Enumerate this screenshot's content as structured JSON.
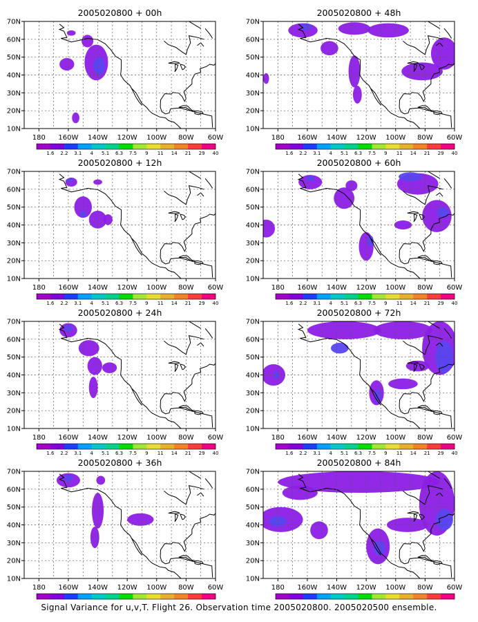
{
  "caption": "Signal Variance for u,v,T. Flight 26. Observation time 2005020800. 2005020500 ensemble.",
  "colorbar": {
    "labels": [
      "1.6",
      "2.2",
      "3.1",
      "4",
      "5.1",
      "6.3",
      "7.5",
      "9",
      "11",
      "14",
      "21",
      "29",
      "40"
    ],
    "colors": [
      "#a000c8",
      "#8200dc",
      "#1e3cff",
      "#00a0ff",
      "#00c8c8",
      "#00d28c",
      "#00dc00",
      "#a0e632",
      "#e6dc32",
      "#e6af2d",
      "#f08228",
      "#fa3c3c",
      "#f00082"
    ]
  },
  "chart_data": [
    {
      "type": "heatmap",
      "title": "2005020800 + 00h",
      "xticks": [
        "180",
        "160W",
        "140W",
        "120W",
        "100W",
        "80W",
        "60W"
      ],
      "yticks": [
        "10N",
        "20N",
        "30N",
        "40N",
        "50N",
        "60N",
        "70N"
      ],
      "lon_range": [
        -190,
        -60
      ],
      "lat_range": [
        10,
        70
      ],
      "grid": true,
      "blobs": [
        {
          "lon": -158,
          "lat": 63.5,
          "rx": 3,
          "ry": 1.5,
          "level": 1
        },
        {
          "lon": -147,
          "lat": 59,
          "rx": 4,
          "ry": 3.5,
          "level": 1
        },
        {
          "lon": -141,
          "lat": 47,
          "rx": 8,
          "ry": 10,
          "level": 1
        },
        {
          "lon": -139,
          "lat": 45,
          "rx": 4,
          "ry": 5,
          "level": 2
        },
        {
          "lon": -161,
          "lat": 46,
          "rx": 5,
          "ry": 3.5,
          "level": 1
        },
        {
          "lon": -155,
          "lat": 16,
          "rx": 2.5,
          "ry": 3,
          "level": 1
        }
      ]
    },
    {
      "type": "heatmap",
      "title": "2005020800 + 48h",
      "xticks": [
        "180",
        "160W",
        "140W",
        "120W",
        "100W",
        "80W",
        "60W"
      ],
      "yticks": [
        "10N",
        "20N",
        "30N",
        "40N",
        "50N",
        "60N",
        "70N"
      ],
      "lon_range": [
        -190,
        -60
      ],
      "lat_range": [
        10,
        70
      ],
      "grid": true,
      "blobs": [
        {
          "lon": -163,
          "lat": 65,
          "rx": 10,
          "ry": 4,
          "level": 1
        },
        {
          "lon": -161,
          "lat": 67,
          "rx": 4,
          "ry": 2,
          "level": 2
        },
        {
          "lon": -128,
          "lat": 66,
          "rx": 11,
          "ry": 3.5,
          "level": 1
        },
        {
          "lon": -105,
          "lat": 65,
          "rx": 14,
          "ry": 4,
          "level": 1
        },
        {
          "lon": -145,
          "lat": 55,
          "rx": 6,
          "ry": 4,
          "level": 1
        },
        {
          "lon": -128,
          "lat": 42,
          "rx": 4,
          "ry": 9,
          "level": 1
        },
        {
          "lon": -126,
          "lat": 29,
          "rx": 3,
          "ry": 5,
          "level": 1
        },
        {
          "lon": -82,
          "lat": 42,
          "rx": 14,
          "ry": 5,
          "level": 1
        },
        {
          "lon": -67,
          "lat": 52,
          "rx": 9,
          "ry": 9,
          "level": 1
        },
        {
          "lon": -188,
          "lat": 38,
          "rx": 2,
          "ry": 3,
          "level": 1
        }
      ]
    },
    {
      "type": "heatmap",
      "title": "2005020800 + 12h",
      "xticks": [
        "180",
        "160W",
        "140W",
        "120W",
        "100W",
        "80W",
        "60W"
      ],
      "yticks": [
        "10N",
        "20N",
        "30N",
        "40N",
        "50N",
        "60N",
        "70N"
      ],
      "lon_range": [
        -190,
        -60
      ],
      "lat_range": [
        10,
        70
      ],
      "grid": true,
      "blobs": [
        {
          "lon": -158,
          "lat": 64,
          "rx": 4,
          "ry": 2.5,
          "level": 1
        },
        {
          "lon": -159,
          "lat": 65,
          "rx": 2,
          "ry": 1.2,
          "level": 2
        },
        {
          "lon": -140,
          "lat": 64,
          "rx": 3,
          "ry": 1.5,
          "level": 1
        },
        {
          "lon": -150,
          "lat": 50,
          "rx": 6,
          "ry": 6,
          "level": 1
        },
        {
          "lon": -150,
          "lat": 46,
          "rx": 2,
          "ry": 2,
          "level": 2
        },
        {
          "lon": -140,
          "lat": 43,
          "rx": 6,
          "ry": 5,
          "level": 1
        },
        {
          "lon": -133,
          "lat": 43,
          "rx": 3,
          "ry": 3,
          "level": 1
        }
      ]
    },
    {
      "type": "heatmap",
      "title": "2005020800 + 60h",
      "xticks": [
        "180",
        "160W",
        "140W",
        "120W",
        "100W",
        "80W",
        "60W"
      ],
      "yticks": [
        "10N",
        "20N",
        "30N",
        "40N",
        "50N",
        "60N",
        "70N"
      ],
      "lon_range": [
        -190,
        -60
      ],
      "lat_range": [
        10,
        70
      ],
      "grid": true,
      "blobs": [
        {
          "lon": -158,
          "lat": 64,
          "rx": 8,
          "ry": 4,
          "level": 1
        },
        {
          "lon": -158,
          "lat": 66,
          "rx": 3,
          "ry": 1.5,
          "level": 2
        },
        {
          "lon": -135,
          "lat": 55,
          "rx": 7,
          "ry": 6,
          "level": 1
        },
        {
          "lon": -130,
          "lat": 62,
          "rx": 4,
          "ry": 3,
          "level": 1
        },
        {
          "lon": -188,
          "lat": 38,
          "rx": 6,
          "ry": 5,
          "level": 1
        },
        {
          "lon": -120,
          "lat": 28,
          "rx": 5,
          "ry": 8,
          "level": 1
        },
        {
          "lon": -117,
          "lat": 31,
          "rx": 2,
          "ry": 3,
          "level": 2
        },
        {
          "lon": -85,
          "lat": 63,
          "rx": 14,
          "ry": 6,
          "level": 1
        },
        {
          "lon": -90,
          "lat": 67,
          "rx": 8,
          "ry": 2.5,
          "level": 2
        },
        {
          "lon": -72,
          "lat": 45,
          "rx": 10,
          "ry": 9,
          "level": 1
        },
        {
          "lon": -68,
          "lat": 47,
          "rx": 4,
          "ry": 3,
          "level": 2
        },
        {
          "lon": -95,
          "lat": 40,
          "rx": 6,
          "ry": 2.5,
          "level": 1
        }
      ]
    },
    {
      "type": "heatmap",
      "title": "2005020800 + 24h",
      "xticks": [
        "180",
        "160W",
        "140W",
        "120W",
        "100W",
        "80W",
        "60W"
      ],
      "yticks": [
        "10N",
        "20N",
        "30N",
        "40N",
        "50N",
        "60N",
        "70N"
      ],
      "lon_range": [
        -190,
        -60
      ],
      "lat_range": [
        10,
        70
      ],
      "grid": true,
      "blobs": [
        {
          "lon": -160,
          "lat": 65,
          "rx": 6,
          "ry": 4,
          "level": 1
        },
        {
          "lon": -160,
          "lat": 66,
          "rx": 3,
          "ry": 2,
          "level": 2
        },
        {
          "lon": -146,
          "lat": 55,
          "rx": 7,
          "ry": 4.5,
          "level": 1
        },
        {
          "lon": -142,
          "lat": 45,
          "rx": 5,
          "ry": 5,
          "level": 1
        },
        {
          "lon": -143,
          "lat": 33,
          "rx": 3,
          "ry": 6,
          "level": 1
        },
        {
          "lon": -132,
          "lat": 44,
          "rx": 5,
          "ry": 3,
          "level": 1
        }
      ]
    },
    {
      "type": "heatmap",
      "title": "2005020800 + 72h",
      "xticks": [
        "180",
        "160W",
        "140W",
        "120W",
        "100W",
        "80W",
        "60W"
      ],
      "yticks": [
        "10N",
        "20N",
        "30N",
        "40N",
        "50N",
        "60N",
        "70N"
      ],
      "lon_range": [
        -190,
        -60
      ],
      "lat_range": [
        10,
        70
      ],
      "grid": true,
      "blobs": [
        {
          "lon": -135,
          "lat": 65,
          "rx": 25,
          "ry": 5,
          "level": 1
        },
        {
          "lon": -95,
          "lat": 65,
          "rx": 20,
          "ry": 5,
          "level": 1
        },
        {
          "lon": -70,
          "lat": 55,
          "rx": 12,
          "ry": 15,
          "level": 1
        },
        {
          "lon": -67,
          "lat": 50,
          "rx": 6,
          "ry": 9,
          "level": 2
        },
        {
          "lon": -183,
          "lat": 40,
          "rx": 8,
          "ry": 6,
          "level": 1
        },
        {
          "lon": -181,
          "lat": 40,
          "rx": 2,
          "ry": 2,
          "level": 2
        },
        {
          "lon": -138,
          "lat": 55,
          "rx": 6,
          "ry": 3,
          "level": 2
        },
        {
          "lon": -113,
          "lat": 30,
          "rx": 5,
          "ry": 7,
          "level": 1
        },
        {
          "lon": -112,
          "lat": 28,
          "rx": 2,
          "ry": 4,
          "level": 2
        },
        {
          "lon": -95,
          "lat": 35,
          "rx": 10,
          "ry": 3,
          "level": 1
        },
        {
          "lon": -85,
          "lat": 45,
          "rx": 8,
          "ry": 3,
          "level": 1
        }
      ]
    },
    {
      "type": "heatmap",
      "title": "2005020800 + 36h",
      "xticks": [
        "180",
        "160W",
        "140W",
        "120W",
        "100W",
        "80W",
        "60W"
      ],
      "yticks": [
        "10N",
        "20N",
        "30N",
        "40N",
        "50N",
        "60N",
        "70N"
      ],
      "lon_range": [
        -190,
        -60
      ],
      "lat_range": [
        10,
        70
      ],
      "grid": true,
      "blobs": [
        {
          "lon": -160,
          "lat": 65,
          "rx": 8,
          "ry": 4,
          "level": 1
        },
        {
          "lon": -160,
          "lat": 66,
          "rx": 3,
          "ry": 2,
          "level": 2
        },
        {
          "lon": -138,
          "lat": 65,
          "rx": 3,
          "ry": 2.5,
          "level": 1
        },
        {
          "lon": -140,
          "lat": 48,
          "rx": 4,
          "ry": 10,
          "level": 1
        },
        {
          "lon": -142,
          "lat": 33,
          "rx": 3,
          "ry": 6,
          "level": 1
        },
        {
          "lon": -111,
          "lat": 43,
          "rx": 9,
          "ry": 3.5,
          "level": 1
        }
      ]
    },
    {
      "type": "heatmap",
      "title": "2005020800 + 84h",
      "xticks": [
        "180",
        "160W",
        "140W",
        "120W",
        "100W",
        "80W",
        "60W"
      ],
      "yticks": [
        "10N",
        "20N",
        "30N",
        "40N",
        "50N",
        "60N",
        "70N"
      ],
      "lon_range": [
        -190,
        -60
      ],
      "lat_range": [
        10,
        70
      ],
      "grid": true,
      "blobs": [
        {
          "lon": -125,
          "lat": 64,
          "rx": 55,
          "ry": 6,
          "level": 1
        },
        {
          "lon": -165,
          "lat": 58,
          "rx": 12,
          "ry": 4,
          "level": 1
        },
        {
          "lon": -72,
          "lat": 52,
          "rx": 12,
          "ry": 18,
          "level": 1
        },
        {
          "lon": -67,
          "lat": 43,
          "rx": 6,
          "ry": 6,
          "level": 2
        },
        {
          "lon": -178,
          "lat": 43,
          "rx": 15,
          "ry": 7,
          "level": 1
        },
        {
          "lon": -180,
          "lat": 42,
          "rx": 6,
          "ry": 3,
          "level": 2
        },
        {
          "lon": -152,
          "lat": 37,
          "rx": 6,
          "ry": 5,
          "level": 1
        },
        {
          "lon": -112,
          "lat": 28,
          "rx": 8,
          "ry": 10,
          "level": 1
        },
        {
          "lon": -111,
          "lat": 27,
          "rx": 4,
          "ry": 4,
          "level": 2
        },
        {
          "lon": -92,
          "lat": 40,
          "rx": 14,
          "ry": 4,
          "level": 1
        }
      ]
    }
  ]
}
